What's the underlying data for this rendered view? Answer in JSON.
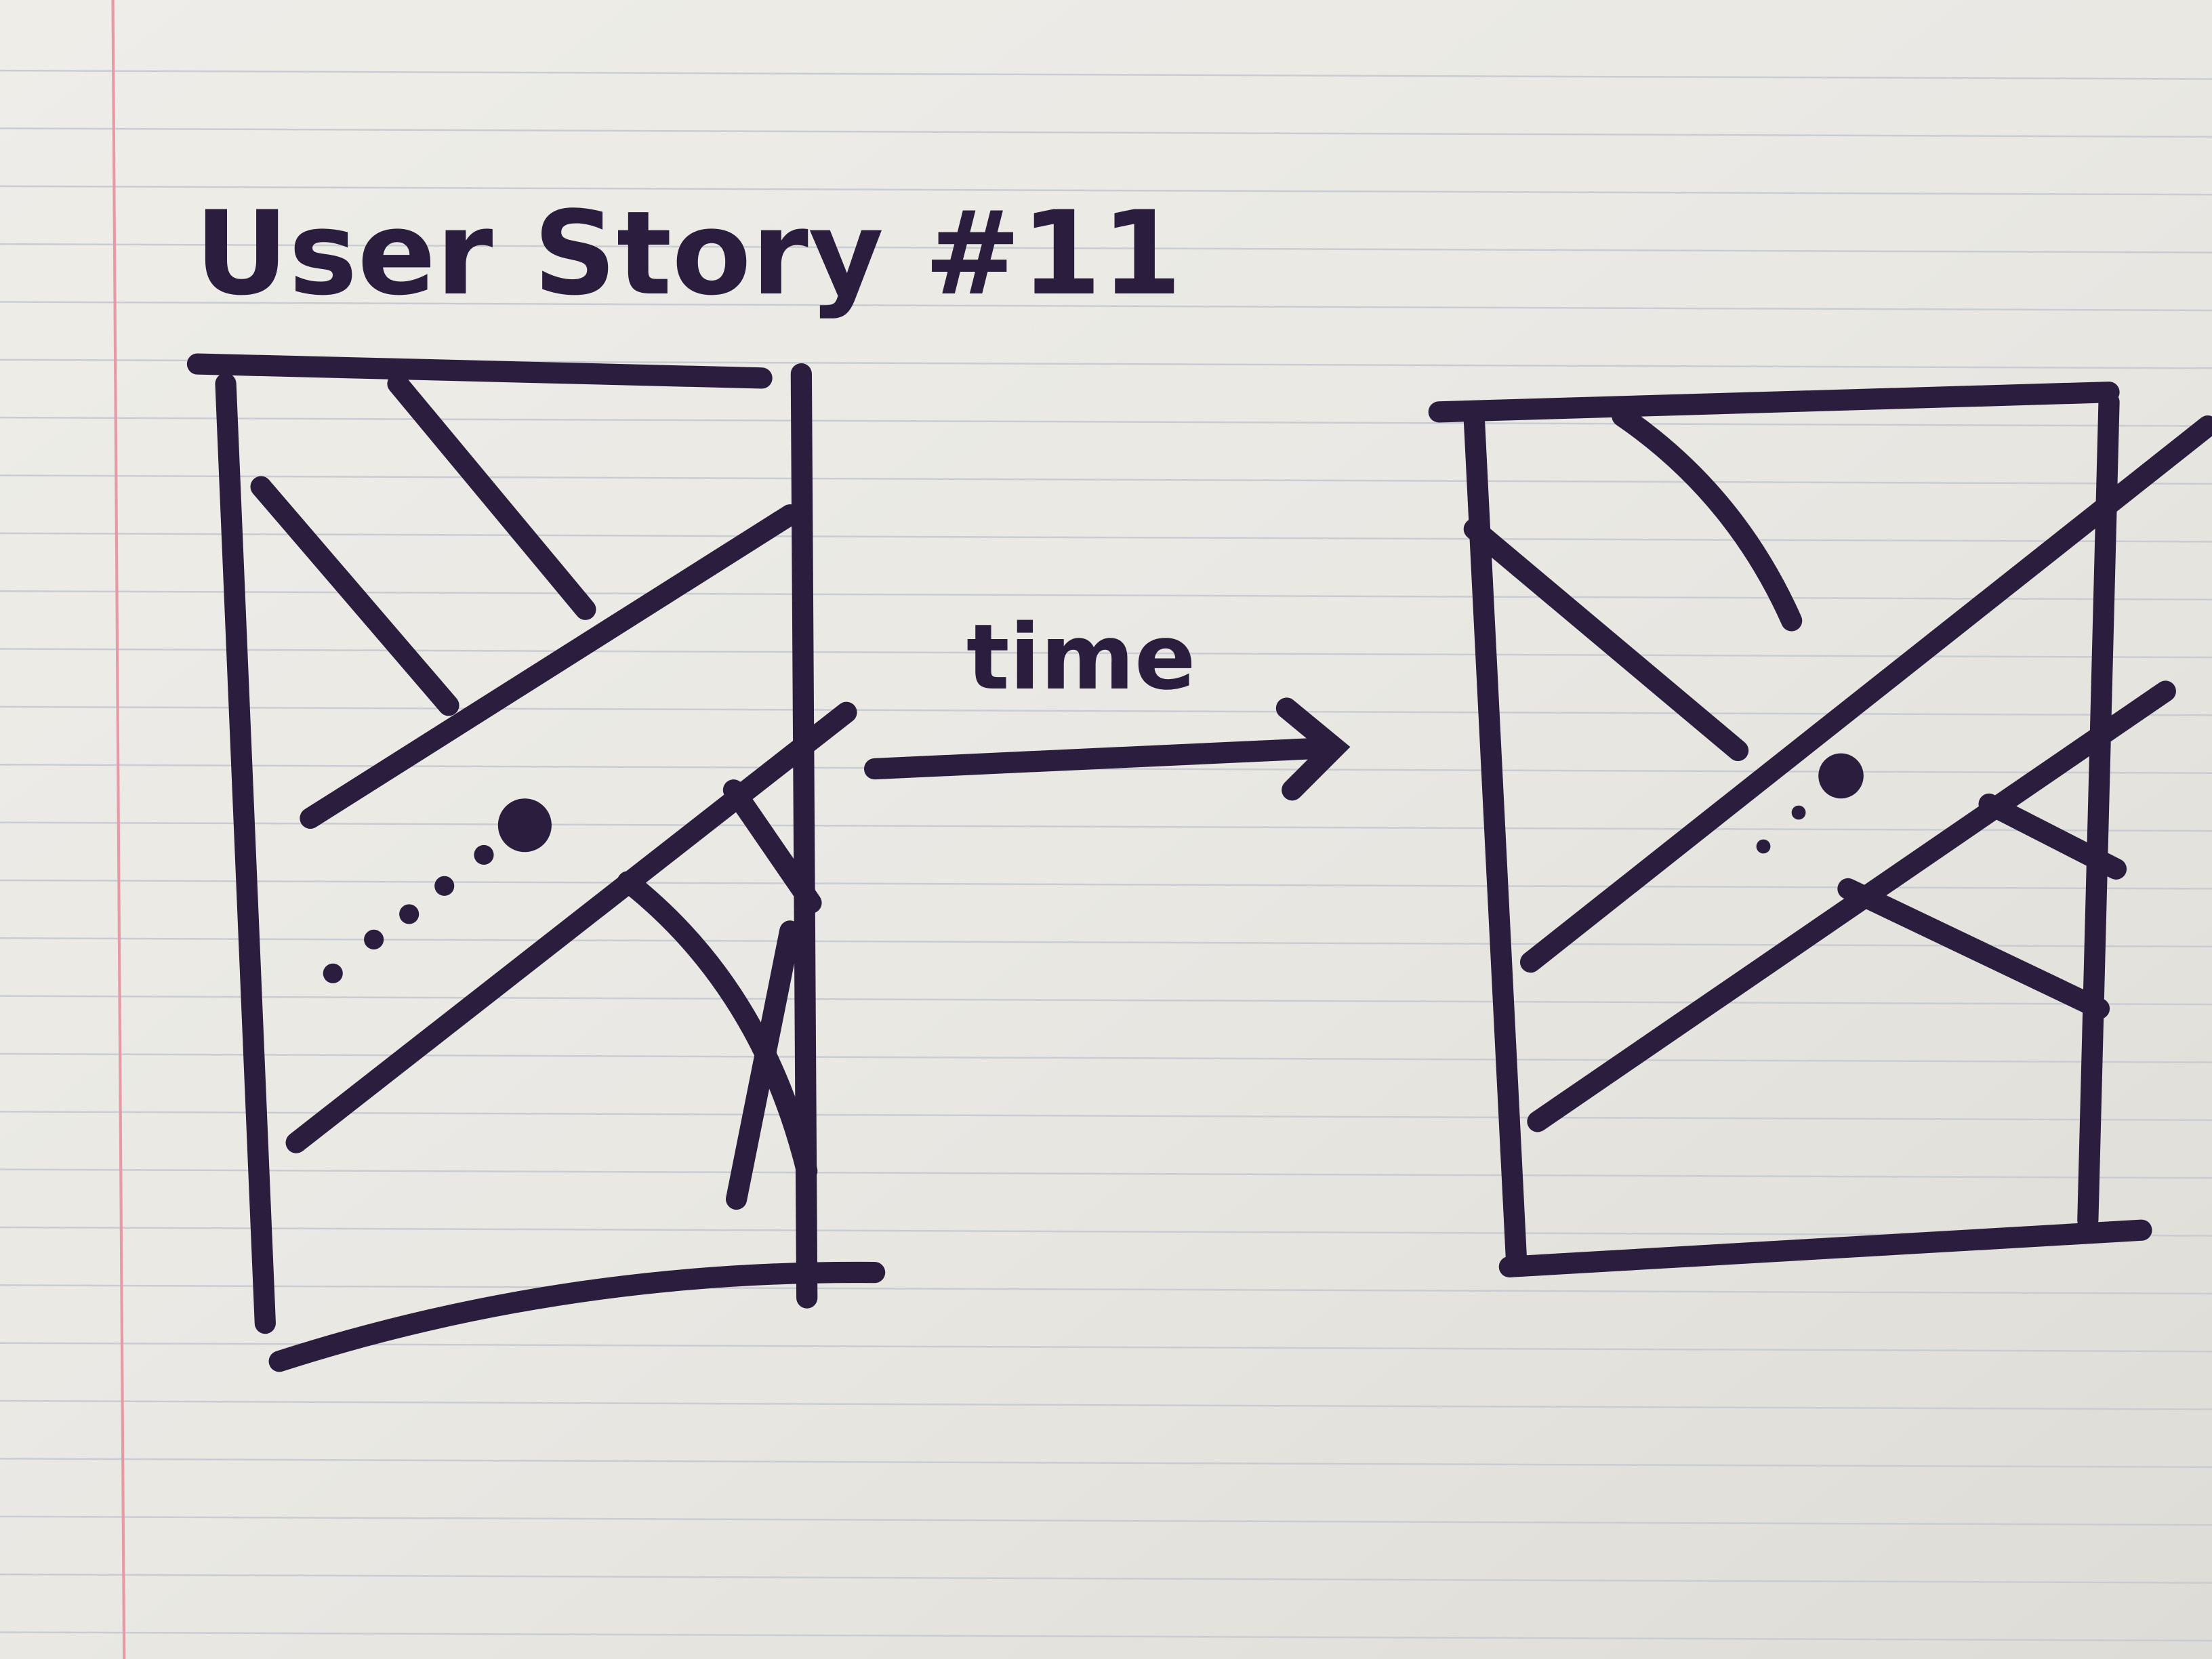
{
  "title": "User Story #11",
  "arrow_label": "time"
}
